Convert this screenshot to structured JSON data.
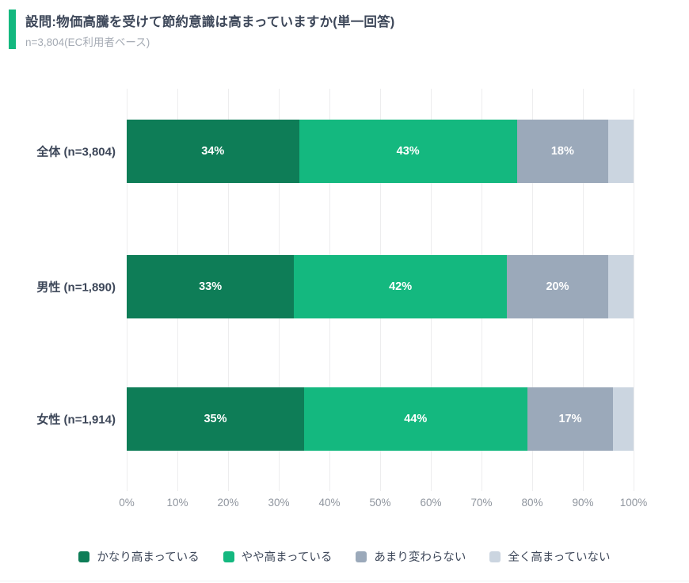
{
  "header": {
    "title": "設問:物価高騰を受けて節約意識は高まっていますか(単一回答)",
    "subtitle": "n=3,804(EC利用者ベース)",
    "accent_color": "#14b87f"
  },
  "chart_data": {
    "type": "bar",
    "orientation": "horizontal",
    "stacked": true,
    "title": "設問:物価高騰を受けて節約意識は高まっていますか(単一回答)",
    "subtitle": "n=3,804(EC利用者ベース)",
    "categories": [
      "全体 (n=3,804)",
      "男性 (n=1,890)",
      "女性 (n=1,914)"
    ],
    "series": [
      {
        "name": "かなり高まっている",
        "color": "#0e7d57",
        "values": [
          34,
          33,
          35
        ],
        "labels": [
          "34%",
          "33%",
          "35%"
        ]
      },
      {
        "name": "やや高まっている",
        "color": "#14b87f",
        "values": [
          43,
          42,
          44
        ],
        "labels": [
          "43%",
          "42%",
          "44%"
        ]
      },
      {
        "name": "あまり変わらない",
        "color": "#9ba9ba",
        "values": [
          18,
          20,
          17
        ],
        "labels": [
          "18%",
          "20%",
          "17%"
        ]
      },
      {
        "name": "全く高まっていない",
        "color": "#cbd5e0",
        "values": [
          5,
          5,
          4
        ],
        "labels": [
          "",
          "",
          ""
        ]
      }
    ],
    "x_ticks": [
      "0%",
      "10%",
      "20%",
      "30%",
      "40%",
      "50%",
      "60%",
      "70%",
      "80%",
      "90%",
      "100%"
    ],
    "xlim": [
      0,
      100
    ],
    "grid": true,
    "legend_position": "bottom",
    "value_label_color": "#ffffff"
  }
}
